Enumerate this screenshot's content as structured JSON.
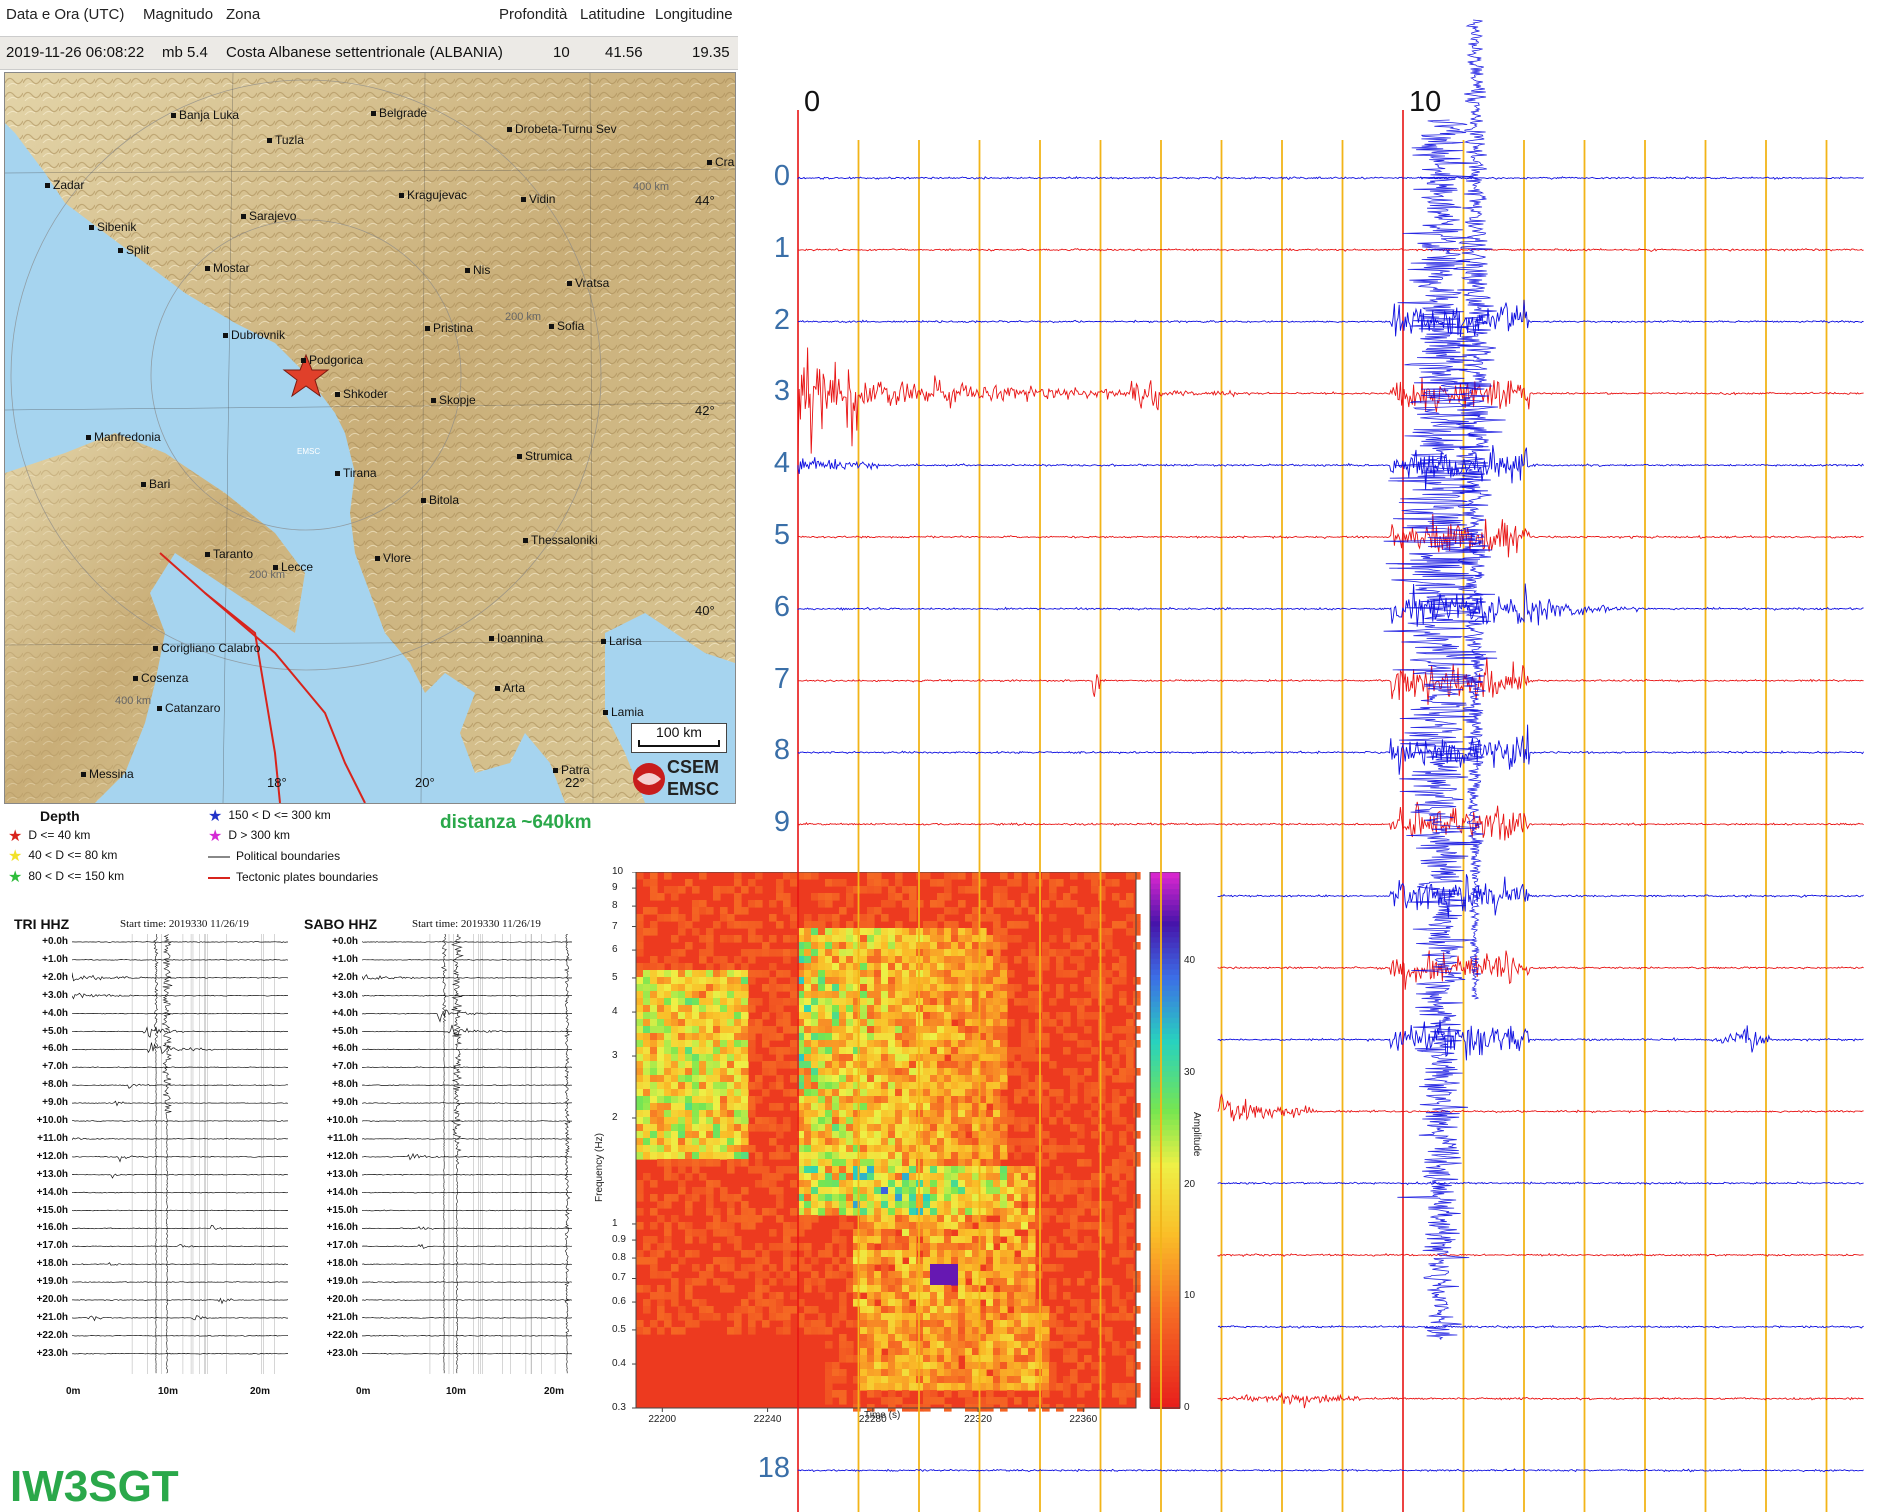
{
  "event": {
    "headers": [
      "Data e Ora (UTC)",
      "Magnitudo",
      "Zona",
      "Profondità",
      "Latitudine",
      "Longitudine"
    ],
    "date_time": "2019-11-26 06:08:22",
    "magnitude": "mb 5.4",
    "zone": "Costa Albanese settentrionale (ALBANIA)",
    "depth": "10",
    "latitude": "41.56",
    "longitude": "19.35"
  },
  "map": {
    "cities": [
      "Banja Luka",
      "Tuzla",
      "Belgrade",
      "Drobeta-Turnu Sev",
      "Craiova",
      "Zadar",
      "Kragujevac",
      "Vidin",
      "Sibenik",
      "Sarajevo",
      "Split",
      "Mostar",
      "Nis",
      "Vratsa",
      "Sofia",
      "Dubrovnik",
      "Pristina",
      "Podgorica",
      "Shkoder",
      "Skopje",
      "Manfredonia",
      "Tirana",
      "Strumica",
      "Bari",
      "Bitola",
      "Thessaloniki",
      "Taranto",
      "Lecce",
      "Vlore",
      "Corigliano Calabro",
      "Ioannina",
      "Larisa",
      "Cosenza",
      "Arta",
      "Catanzaro",
      "Lamia",
      "Messina",
      "Patra"
    ],
    "grid_labels": [
      "44°",
      "42°",
      "40°",
      "18°",
      "20°",
      "22°"
    ],
    "distance_labels": [
      "400 km",
      "200 km",
      "200 km",
      "400 km"
    ],
    "star_label": "EMSC",
    "scale": "100 km",
    "logo_top": "CSEM",
    "logo_bottom": "EMSC",
    "colors": {
      "land": "#d8c9a0",
      "sea": "#9fd0ee",
      "star": "#e0402a",
      "plate": "#d8241c"
    }
  },
  "legend": {
    "title": "Depth",
    "items": [
      {
        "label": "D <= 40 km",
        "color": "#d8241c"
      },
      {
        "label": "40 < D <= 80 km",
        "color": "#f2e12a"
      },
      {
        "label": "80 < D <= 150 km",
        "color": "#2ebd3b"
      },
      {
        "label": "150 < D <= 300 km",
        "color": "#2232c8"
      },
      {
        "label": "D > 300 km",
        "color": "#d42ad4"
      }
    ],
    "lines": [
      {
        "label": "Political boundaries",
        "color": "#888888"
      },
      {
        "label": "Tectonic plates boundaries",
        "color": "#d8241c"
      }
    ]
  },
  "distance": "distanza ~640km",
  "helicorders": [
    {
      "title": "TRI HHZ",
      "start": "Start time: 2019330 11/26/19"
    },
    {
      "title": "SABO HHZ",
      "start": "Start time: 2019330 11/26/19"
    }
  ],
  "heli_hours": [
    "+0.0h",
    "+1.0h",
    "+2.0h",
    "+3.0h",
    "+4.0h",
    "+5.0h",
    "+6.0h",
    "+7.0h",
    "+8.0h",
    "+9.0h",
    "+10.0h",
    "+11.0h",
    "+12.0h",
    "+13.0h",
    "+14.0h",
    "+15.0h",
    "+16.0h",
    "+17.0h",
    "+18.0h",
    "+19.0h",
    "+20.0h",
    "+21.0h",
    "+22.0h",
    "+23.0h"
  ],
  "heli_times": [
    "0m",
    "10m",
    "20m"
  ],
  "chart_data": [
    {
      "type": "heatmap",
      "xlabel": "Time (s)",
      "ylabel": "Frequency (Hz)",
      "colorbar_label": "Amplitude",
      "x_ticks": [
        22200,
        22240,
        22280,
        22320,
        22360
      ],
      "y_ticks": [
        "10",
        "9",
        "8",
        "7",
        "6",
        "5",
        "4",
        "3",
        "2",
        "1",
        "0.9",
        "0.8",
        "0.7",
        "0.6",
        "0.5",
        "0.4",
        "0.3"
      ],
      "y_scale": "log",
      "ylim": [
        0.3,
        10
      ],
      "colorbar_ticks": [
        "40",
        "30",
        "20",
        "10",
        "0"
      ],
      "colorbar_range": [
        0,
        48
      ]
    },
    {
      "type": "line",
      "column_ticks": [
        "0",
        "10"
      ],
      "row_labels_top": [
        "0",
        "1",
        "2",
        "3",
        "4",
        "5",
        "6",
        "7",
        "8",
        "9"
      ],
      "row_label_bottom": "18",
      "row_count": 19,
      "colors": {
        "blue": "#1010e0",
        "red": "#e81414",
        "marker": "#f2b418"
      }
    }
  ],
  "signature": "IW3SGT"
}
